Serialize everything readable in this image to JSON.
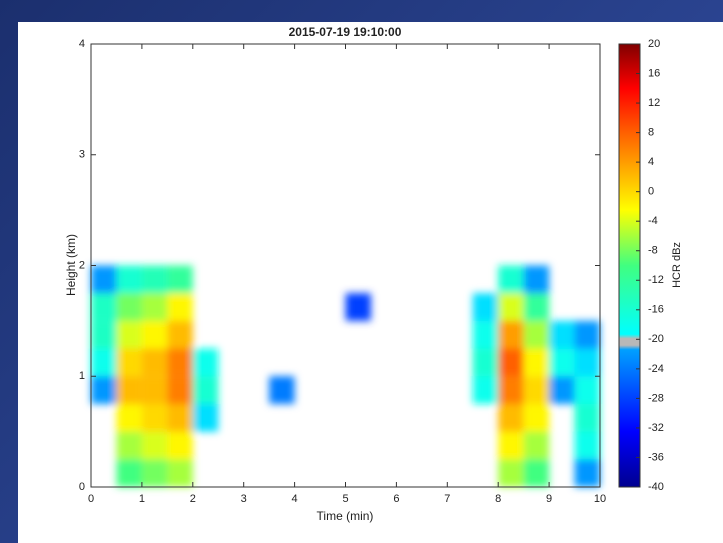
{
  "chart_data": {
    "type": "heatmap",
    "title": "2015-07-19 19:10:00",
    "x_label": "Time (min)",
    "y_label": "Height (km)",
    "colorbar_label": "HCR dBz",
    "bins": [
      0,
      0.5,
      1,
      1.5,
      2,
      2.5,
      3,
      3.5,
      4,
      4.5,
      5,
      5.5,
      6,
      6.5,
      7,
      7.5,
      8,
      8.5,
      9,
      9.5,
      10
    ],
    "y_bins": [
      0,
      0.25,
      0.5,
      0.75,
      1,
      1.25,
      1.5,
      1.75,
      2
    ],
    "values": [
      [
        null,
        -10,
        -8,
        -6,
        null,
        null,
        null,
        null,
        null,
        null,
        null,
        null,
        null,
        null,
        null,
        null,
        -6,
        -10,
        null,
        -22
      ],
      [
        null,
        -6,
        -4,
        -2,
        null,
        null,
        null,
        null,
        null,
        null,
        null,
        null,
        null,
        null,
        null,
        null,
        -2,
        -6,
        null,
        -18
      ],
      [
        null,
        -2,
        0,
        2,
        -20,
        null,
        null,
        null,
        null,
        null,
        null,
        null,
        null,
        null,
        null,
        null,
        2,
        -2,
        null,
        -16
      ],
      [
        -22,
        2,
        2,
        6,
        -16,
        null,
        null,
        -24,
        null,
        null,
        null,
        null,
        null,
        null,
        null,
        -18,
        6,
        0,
        -22,
        -18
      ],
      [
        -18,
        0,
        2,
        6,
        -18,
        null,
        null,
        null,
        null,
        null,
        null,
        null,
        null,
        null,
        null,
        -16,
        8,
        -2,
        -18,
        -20
      ],
      [
        -15,
        -4,
        -2,
        2,
        null,
        null,
        null,
        null,
        null,
        null,
        null,
        null,
        null,
        null,
        null,
        -18,
        4,
        -6,
        -20,
        -22
      ],
      [
        -15,
        -8,
        -6,
        -2,
        null,
        null,
        null,
        null,
        null,
        null,
        -28,
        null,
        null,
        null,
        null,
        -20,
        -4,
        -12,
        null,
        null
      ],
      [
        -22,
        -16,
        -14,
        -12,
        null,
        null,
        null,
        null,
        null,
        null,
        null,
        null,
        null,
        null,
        null,
        null,
        -16,
        -22,
        null,
        null
      ]
    ],
    "xlim": [
      0,
      10
    ],
    "ylim": [
      0,
      4
    ],
    "xticks": [
      0,
      1,
      2,
      3,
      4,
      5,
      6,
      7,
      8,
      9,
      10
    ],
    "yticks": [
      0,
      1,
      2,
      3,
      4
    ],
    "clim": [
      -40,
      20
    ],
    "cticks": [
      20,
      16,
      12,
      8,
      4,
      0,
      -4,
      -8,
      -12,
      -16,
      -20,
      -24,
      -28,
      -32,
      -36,
      -40
    ]
  }
}
